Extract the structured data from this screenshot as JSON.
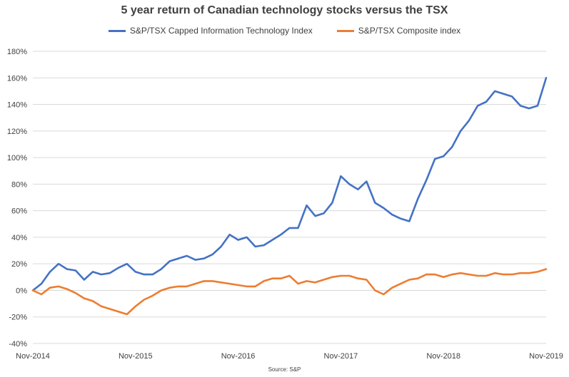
{
  "chart_data": {
    "type": "line",
    "title": "5 year return of Canadian technology stocks versus the TSX",
    "source": "Source: S&P",
    "xlabel": "",
    "ylabel": "",
    "x_ticks": [
      "Nov-2014",
      "Nov-2015",
      "Nov-2016",
      "Nov-2017",
      "Nov-2018",
      "Nov-2019"
    ],
    "y_ticks": [
      "-40%",
      "-20%",
      "0%",
      "20%",
      "40%",
      "60%",
      "80%",
      "100%",
      "120%",
      "140%",
      "160%",
      "180%"
    ],
    "ylim": [
      -40,
      180
    ],
    "xlim": [
      0,
      60
    ],
    "x_unit": "months since Nov-2014",
    "grid": "horizontal",
    "legend_position": "top",
    "series": [
      {
        "name": "S&P/TSX Capped Information Technology Index",
        "color": "#4472c4",
        "x": [
          0,
          1,
          2,
          3,
          4,
          5,
          6,
          7,
          8,
          9,
          10,
          11,
          12,
          13,
          14,
          15,
          16,
          17,
          18,
          19,
          20,
          21,
          22,
          23,
          24,
          25,
          26,
          27,
          28,
          29,
          30,
          31,
          32,
          33,
          34,
          35,
          36,
          37,
          38,
          39,
          40,
          41,
          42,
          43,
          44,
          45,
          46,
          47,
          48,
          49,
          50,
          51,
          52,
          53,
          54,
          55,
          56,
          57,
          58,
          59,
          60
        ],
        "values": [
          0,
          5,
          14,
          20,
          16,
          15,
          8,
          14,
          12,
          13,
          17,
          20,
          14,
          12,
          12,
          16,
          22,
          24,
          26,
          23,
          24,
          27,
          33,
          42,
          38,
          40,
          33,
          34,
          38,
          42,
          47,
          47,
          64,
          56,
          58,
          66,
          86,
          80,
          76,
          82,
          66,
          62,
          57,
          54,
          52,
          69,
          83,
          99,
          101,
          108,
          120,
          128,
          139,
          142,
          150,
          148,
          146,
          139,
          137,
          139,
          160
        ]
      },
      {
        "name": "S&P/TSX Composite index",
        "color": "#ed7d31",
        "x": [
          0,
          1,
          2,
          3,
          4,
          5,
          6,
          7,
          8,
          9,
          10,
          11,
          12,
          13,
          14,
          15,
          16,
          17,
          18,
          19,
          20,
          21,
          22,
          23,
          24,
          25,
          26,
          27,
          28,
          29,
          30,
          31,
          32,
          33,
          34,
          35,
          36,
          37,
          38,
          39,
          40,
          41,
          42,
          43,
          44,
          45,
          46,
          47,
          48,
          49,
          50,
          51,
          52,
          53,
          54,
          55,
          56,
          57,
          58,
          59,
          60
        ],
        "values": [
          0,
          -3,
          2,
          3,
          1,
          -2,
          -6,
          -8,
          -12,
          -14,
          -16,
          -18,
          -12,
          -7,
          -4,
          0,
          2,
          3,
          3,
          5,
          7,
          7,
          6,
          5,
          4,
          3,
          3,
          7,
          9,
          9,
          11,
          5,
          7,
          6,
          8,
          10,
          11,
          11,
          9,
          8,
          0,
          -3,
          2,
          5,
          8,
          9,
          12,
          12,
          10,
          12,
          13,
          12,
          11,
          11,
          13,
          12,
          12,
          13,
          13,
          14,
          16
        ]
      }
    ]
  }
}
